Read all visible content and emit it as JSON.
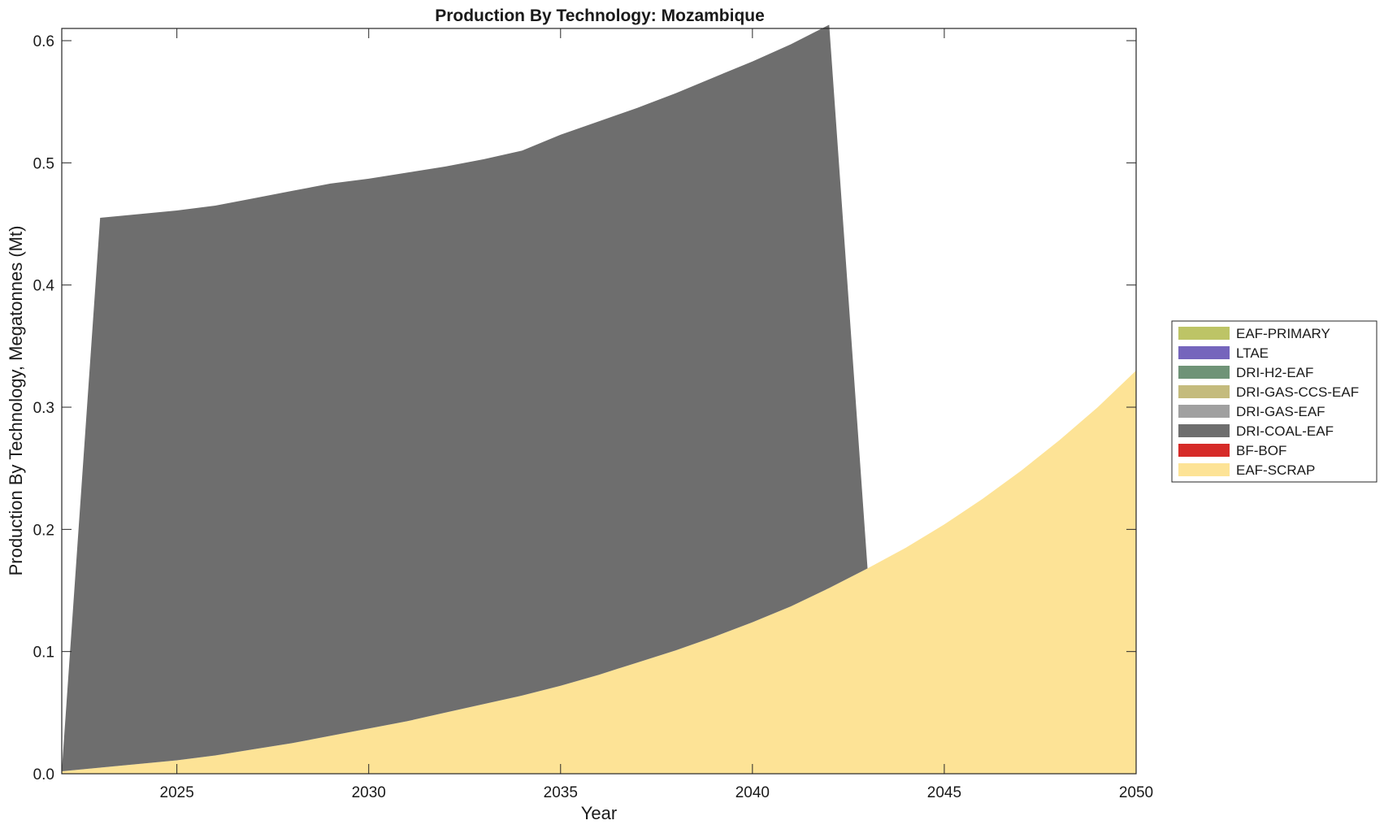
{
  "chart_data": {
    "type": "area",
    "stacked": true,
    "title": "Production By Technology: Mozambique",
    "xlabel": "Year",
    "ylabel": "Production By Technology, Megatonnes (Mt)",
    "xlim": [
      2022,
      2050
    ],
    "ylim": [
      0,
      0.61
    ],
    "xticks": [
      2025,
      2030,
      2035,
      2040,
      2045,
      2050
    ],
    "yticks": [
      0.0,
      0.1,
      0.2,
      0.3,
      0.4,
      0.5,
      0.6
    ],
    "ytick_labels": [
      "0.0",
      "0.1",
      "0.2",
      "0.3",
      "0.4",
      "0.5",
      "0.6"
    ],
    "grid": false,
    "legend_position": "right",
    "x": [
      2022,
      2023,
      2024,
      2025,
      2026,
      2027,
      2028,
      2029,
      2030,
      2031,
      2032,
      2033,
      2034,
      2035,
      2036,
      2037,
      2038,
      2039,
      2040,
      2041,
      2042,
      2043,
      2044,
      2045,
      2046,
      2047,
      2048,
      2049,
      2050
    ],
    "legend": [
      "EAF-PRIMARY",
      "LTAE",
      "DRI-H2-EAF",
      "DRI-GAS-CCS-EAF",
      "DRI-GAS-EAF",
      "DRI-COAL-EAF",
      "BF-BOF",
      "EAF-SCRAP"
    ],
    "series": [
      {
        "name": "EAF-SCRAP",
        "color": "#fde396",
        "values": [
          0.002,
          0.005,
          0.008,
          0.011,
          0.015,
          0.02,
          0.025,
          0.031,
          0.037,
          0.043,
          0.05,
          0.057,
          0.064,
          0.072,
          0.081,
          0.091,
          0.101,
          0.112,
          0.124,
          0.137,
          0.152,
          0.168,
          0.185,
          0.204,
          0.225,
          0.248,
          0.273,
          0.3,
          0.33
        ]
      },
      {
        "name": "BF-BOF",
        "color": "#d62b28",
        "values": [
          0,
          0,
          0,
          0,
          0,
          0,
          0,
          0,
          0,
          0,
          0,
          0,
          0,
          0,
          0,
          0,
          0,
          0,
          0,
          0,
          0,
          0,
          0,
          0,
          0,
          0,
          0,
          0,
          0
        ]
      },
      {
        "name": "DRI-COAL-EAF",
        "color": "#6e6e6e",
        "values": [
          0,
          0.45,
          0.45,
          0.45,
          0.45,
          0.451,
          0.452,
          0.452,
          0.45,
          0.449,
          0.447,
          0.446,
          0.446,
          0.451,
          0.453,
          0.454,
          0.456,
          0.458,
          0.459,
          0.46,
          0.461,
          0,
          0,
          0,
          0,
          0,
          0,
          0,
          0
        ]
      },
      {
        "name": "DRI-GAS-EAF",
        "color": "#a0a0a0",
        "values": [
          0,
          0,
          0,
          0,
          0,
          0,
          0,
          0,
          0,
          0,
          0,
          0,
          0,
          0,
          0,
          0,
          0,
          0,
          0,
          0,
          0,
          0,
          0,
          0,
          0,
          0,
          0,
          0,
          0
        ]
      },
      {
        "name": "DRI-GAS-CCS-EAF",
        "color": "#c4bb7d",
        "values": [
          0,
          0,
          0,
          0,
          0,
          0,
          0,
          0,
          0,
          0,
          0,
          0,
          0,
          0,
          0,
          0,
          0,
          0,
          0,
          0,
          0,
          0,
          0,
          0,
          0,
          0,
          0,
          0,
          0
        ]
      },
      {
        "name": "DRI-H2-EAF",
        "color": "#6f9377",
        "values": [
          0,
          0,
          0,
          0,
          0,
          0,
          0,
          0,
          0,
          0,
          0,
          0,
          0,
          0,
          0,
          0,
          0,
          0,
          0,
          0,
          0,
          0,
          0,
          0,
          0,
          0,
          0,
          0,
          0
        ]
      },
      {
        "name": "LTAE",
        "color": "#7565bc",
        "values": [
          0,
          0,
          0,
          0,
          0,
          0,
          0,
          0,
          0,
          0,
          0,
          0,
          0,
          0,
          0,
          0,
          0,
          0,
          0,
          0,
          0,
          0,
          0,
          0,
          0,
          0,
          0,
          0,
          0
        ]
      },
      {
        "name": "EAF-PRIMARY",
        "color": "#bdc466",
        "values": [
          0,
          0,
          0,
          0,
          0,
          0,
          0,
          0,
          0,
          0,
          0,
          0,
          0,
          0,
          0,
          0,
          0,
          0,
          0,
          0,
          0,
          0,
          0,
          0,
          0,
          0,
          0,
          0,
          0
        ]
      }
    ]
  }
}
